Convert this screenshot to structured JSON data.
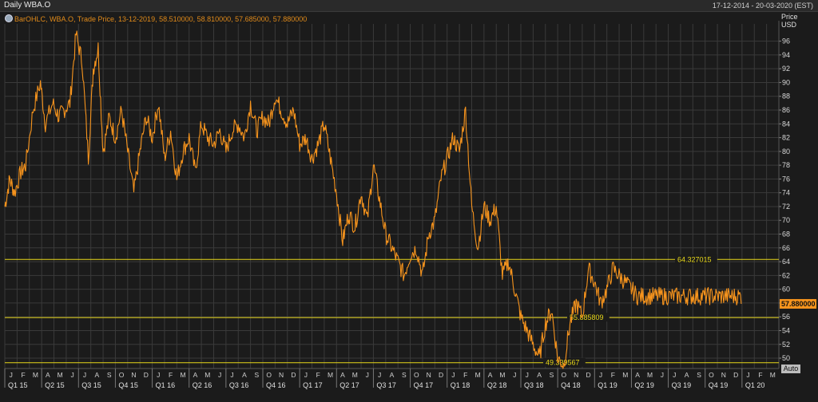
{
  "window": {
    "title": "Daily WBA.O",
    "date_range": "17-12-2014 - 20-03-2020 (EST)"
  },
  "legend_text": "BarOHLC, WBA.O, Trade Price,  13-12-2019, 58.510000, 58.810000, 57.685000, 57.880000",
  "axis_header": {
    "line1": "Price",
    "line2": "USD"
  },
  "auto_label": "Auto",
  "colors": {
    "series": "#f7941d",
    "level_lines": "#e8d81a",
    "grid": "#3a3a3a",
    "background": "#1b1b1b"
  },
  "chart_data": {
    "type": "line",
    "ylim": [
      48.5,
      98.5
    ],
    "y_ticks": [
      50,
      52,
      54,
      56,
      58,
      60,
      62,
      64,
      66,
      68,
      70,
      72,
      74,
      76,
      78,
      80,
      82,
      84,
      86,
      88,
      90,
      92,
      94,
      96
    ],
    "grid": true,
    "last_price": "57.880000",
    "month_labels": [
      "J",
      "F",
      "M",
      "A",
      "M",
      "J",
      "J",
      "A",
      "S",
      "O",
      "N",
      "D",
      "J",
      "F",
      "M",
      "A",
      "M",
      "J",
      "J",
      "A",
      "S",
      "O",
      "N",
      "D",
      "J",
      "F",
      "M",
      "A",
      "M",
      "J",
      "J",
      "A",
      "S",
      "O",
      "N",
      "D",
      "J",
      "F",
      "M",
      "A",
      "M",
      "J",
      "J",
      "A",
      "S",
      "O",
      "N",
      "D",
      "J",
      "F",
      "M",
      "A",
      "M",
      "J",
      "J",
      "A",
      "S",
      "O",
      "N",
      "D",
      "J",
      "F",
      "M"
    ],
    "quarter_labels": [
      "Q1 15",
      "Q2 15",
      "Q3 15",
      "Q4 15",
      "Q1 16",
      "Q2 16",
      "Q3 16",
      "Q4 16",
      "Q1 17",
      "Q2 17",
      "Q3 17",
      "Q4 17",
      "Q1 18",
      "Q2 18",
      "Q3 18",
      "Q4 18",
      "Q1 19",
      "Q2 19",
      "Q3 19",
      "Q4 19",
      "Q1 20"
    ],
    "horizontal_levels": [
      {
        "value": 64.327015,
        "label": "64.327015"
      },
      {
        "value": 55.885809,
        "label": "55.885809"
      },
      {
        "value": 49.339567,
        "label": "49.339567"
      }
    ],
    "series": [
      {
        "x": [
          0,
          0.4,
          0.8,
          1.3,
          1.7,
          2.3,
          2.9,
          3.3,
          3.9,
          4.4,
          4.8,
          5.3,
          5.8,
          6.3,
          6.8,
          7.2,
          7.6,
          8.0,
          8.5,
          9.0,
          9.5,
          10.0,
          10.5,
          11.0,
          11.5,
          12.0,
          12.5,
          13.0,
          13.5,
          14.0,
          14.5,
          15.0,
          15.5,
          16.0,
          16.5,
          17.0,
          17.5,
          18.0,
          18.5,
          19.0,
          19.5,
          20.0,
          20.5,
          21.0,
          21.5,
          22.0,
          22.5,
          23.0,
          23.5,
          24.0,
          24.5,
          25.0,
          25.5,
          26.0,
          26.5,
          27.0,
          27.5,
          28.0,
          28.5,
          29.0,
          29.5,
          30.0,
          30.5,
          31.0,
          31.5,
          32.0,
          32.5,
          33.0,
          33.5,
          34.0,
          34.5,
          35.0,
          35.5,
          36.0,
          36.5,
          37.0,
          37.5,
          38.0,
          38.5,
          39.0,
          39.5,
          40.0,
          40.5,
          41.0,
          41.5,
          42.0,
          42.5,
          43.0,
          43.5,
          44.0,
          44.5,
          45.0,
          45.5,
          46.0,
          46.5,
          47.0,
          47.5,
          48.0,
          48.5,
          49.0,
          49.5,
          50.0,
          50.5,
          51.0,
          51.5,
          52.0,
          52.5,
          53.0,
          53.5,
          54.0,
          54.5,
          55.0,
          55.5,
          56.0,
          56.5,
          57.0,
          57.5,
          58.0,
          58.5,
          59.0,
          59.5,
          60.0
        ],
        "values": [
          72,
          76,
          74,
          77,
          78,
          86,
          90,
          84,
          87,
          85,
          86,
          87,
          97,
          93,
          79,
          92,
          95,
          80,
          85,
          82,
          86,
          80,
          74,
          80,
          85,
          82,
          87,
          79,
          83,
          76,
          80,
          82,
          77,
          84,
          82,
          81,
          83,
          80,
          83,
          84,
          82,
          87,
          83,
          85,
          84,
          88,
          86,
          84,
          86,
          81,
          82,
          79,
          81,
          84,
          79,
          74,
          67,
          71,
          69,
          74,
          70,
          78,
          73,
          68,
          66,
          64,
          62,
          65,
          66,
          62,
          68,
          70,
          76,
          79,
          82,
          80,
          86,
          72,
          66,
          72,
          70,
          72,
          62,
          64,
          60,
          56,
          54,
          52,
          50,
          55,
          57,
          50,
          49,
          55,
          58,
          56,
          63,
          61,
          58,
          60,
          63,
          62,
          61,
          60,
          59,
          59,
          59,
          59,
          59,
          59,
          59,
          59,
          59,
          59,
          59,
          59,
          59,
          59,
          59,
          59,
          59,
          59
        ]
      }
    ]
  }
}
